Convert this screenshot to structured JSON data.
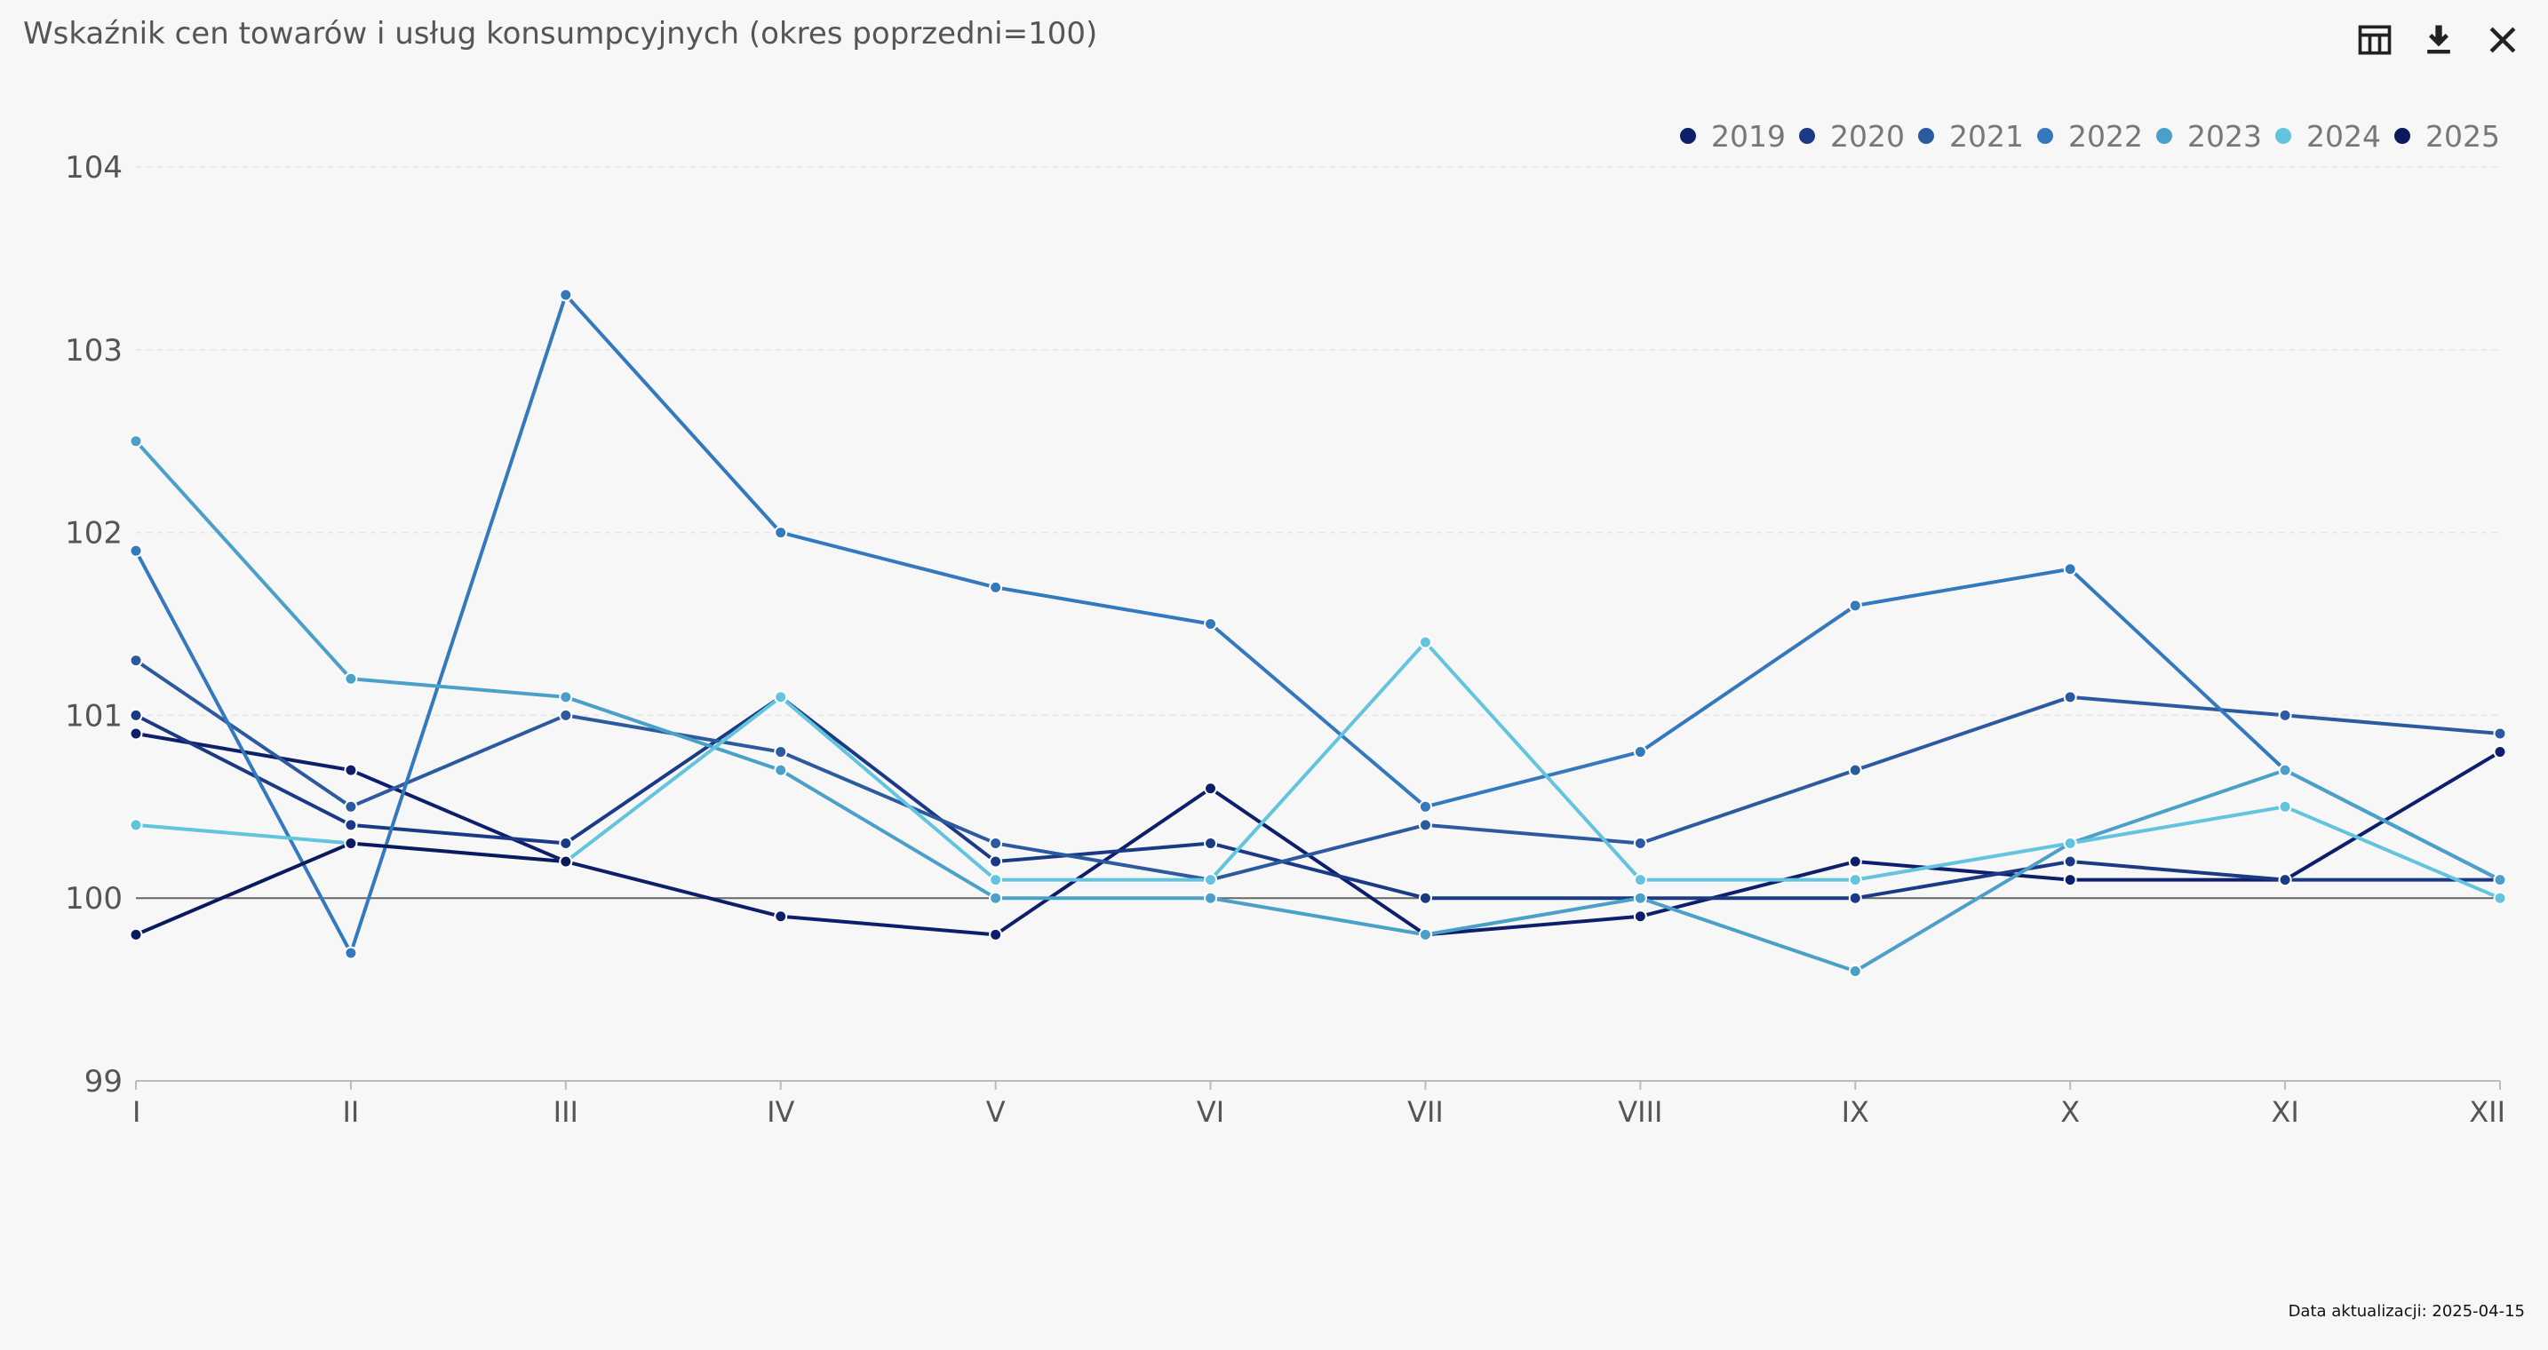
{
  "title": "Wskaźnik cen towarów i usług konsumpcyjnych (okres poprzedni=100)",
  "toolbar": {
    "table_icon": "table-icon",
    "download_icon": "download-icon",
    "close_icon": "close-icon"
  },
  "update": {
    "label": "Data aktualizacji: 2025-04-15"
  },
  "chart_data": {
    "type": "line",
    "title": "Wskaźnik cen towarów i usług konsumpcyjnych (okres poprzedni=100)",
    "categories": [
      "I",
      "II",
      "III",
      "IV",
      "V",
      "VI",
      "VII",
      "VIII",
      "IX",
      "X",
      "XI",
      "XII"
    ],
    "yticks": [
      99,
      100,
      101,
      102,
      103,
      104
    ],
    "ylim": [
      99,
      104
    ],
    "baseline": 100,
    "grid": true,
    "legend_position": "top-right",
    "series": [
      {
        "name": "2019",
        "color": "#0d1f6b",
        "values": [
          100.9,
          100.7,
          100.2,
          99.9,
          99.8,
          100.6,
          99.8,
          99.9,
          100.2,
          100.1,
          100.1,
          100.8
        ]
      },
      {
        "name": "2020",
        "color": "#1b3a85",
        "values": [
          101.0,
          100.4,
          100.3,
          101.1,
          100.2,
          100.3,
          100.0,
          100.0,
          100.0,
          100.2,
          100.1,
          100.1
        ]
      },
      {
        "name": "2021",
        "color": "#2b5a9e",
        "values": [
          101.3,
          100.5,
          101.0,
          100.8,
          100.3,
          100.1,
          100.4,
          100.3,
          100.7,
          101.1,
          101.0,
          100.9
        ]
      },
      {
        "name": "2022",
        "color": "#3478bd",
        "values": [
          101.9,
          99.7,
          103.3,
          102.0,
          101.7,
          101.5,
          100.5,
          100.8,
          101.6,
          101.8,
          100.7,
          100.1
        ]
      },
      {
        "name": "2023",
        "color": "#4aa0c8",
        "values": [
          102.5,
          101.2,
          101.1,
          100.7,
          100.0,
          100.0,
          99.8,
          100.0,
          99.6,
          100.3,
          100.7,
          100.1
        ]
      },
      {
        "name": "2024",
        "color": "#62c4dd",
        "values": [
          100.4,
          100.3,
          100.2,
          101.1,
          100.1,
          100.1,
          101.4,
          100.1,
          100.1,
          100.3,
          100.5,
          100.0
        ]
      },
      {
        "name": "2025",
        "color": "#0b1a5c",
        "values": [
          99.8,
          100.3,
          100.2,
          null,
          null,
          null,
          null,
          null,
          null,
          null,
          null,
          null
        ]
      }
    ]
  }
}
